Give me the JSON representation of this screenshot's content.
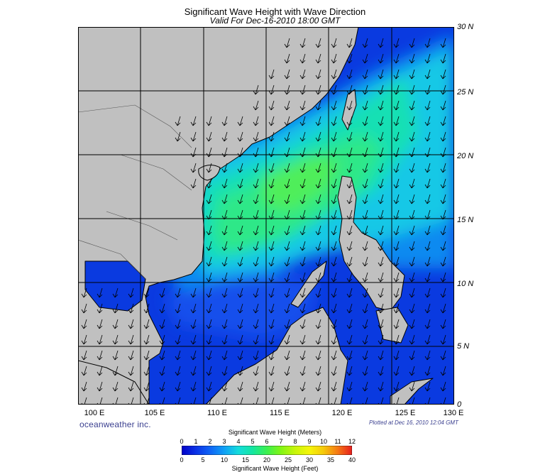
{
  "header": {
    "title": "Significant Wave Height with Wave Direction",
    "subtitle": "Valid For Dec-16-2010 18:00 GMT"
  },
  "lat_labels": [
    "30 N",
    "25 N",
    "20 N",
    "15 N",
    "10 N",
    "5 N",
    "0"
  ],
  "lon_labels": [
    "100 E",
    "105 E",
    "110 E",
    "115 E",
    "120 E",
    "125 E",
    "130 E"
  ],
  "footer": {
    "brand": "oceanweather inc.",
    "plotted": "Plotted at Dec 16, 2010 12:04 GMT"
  },
  "colorbar": {
    "title_top": "Significant Wave Height (Meters)",
    "title_bottom": "Significant Wave Height (Feet)",
    "meters": [
      "0",
      "1",
      "2",
      "3",
      "4",
      "5",
      "6",
      "7",
      "8",
      "9",
      "10",
      "11",
      "12"
    ],
    "feet": [
      "0",
      "5",
      "10",
      "15",
      "20",
      "25",
      "30",
      "35",
      "40"
    ],
    "colors": [
      "#0000c8",
      "#0a32e6",
      "#0f64f5",
      "#0fa0f5",
      "#14dcdc",
      "#14e6a0",
      "#3cf050",
      "#82f514",
      "#c8f50a",
      "#f5f50a",
      "#f5c80a",
      "#f57814",
      "#e61e1e"
    ]
  },
  "map_colors": {
    "land": "#c0c0c0",
    "coast": "#000000",
    "grid": "#000000"
  }
}
